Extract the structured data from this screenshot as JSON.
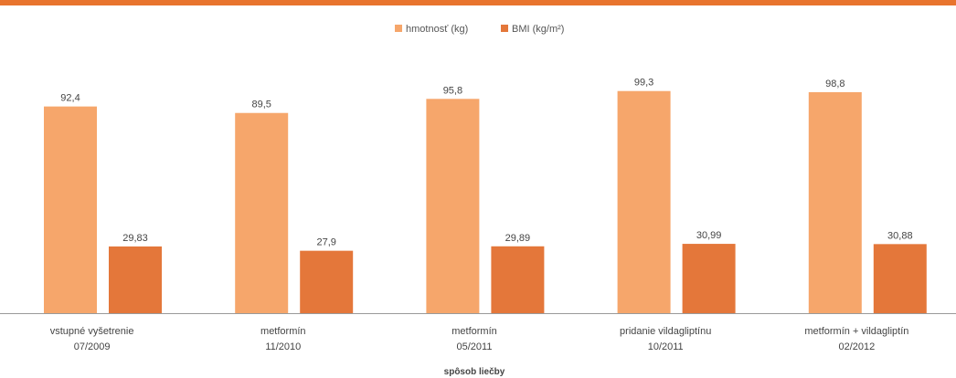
{
  "colors": {
    "accent": "#E8742E",
    "series1": "#F6A66B",
    "series2": "#E4773A",
    "axis": "#9a9a9a",
    "text": "#444444"
  },
  "chart_data": {
    "type": "bar",
    "categories": [
      [
        "vstupné vyšetrenie",
        "07/2009"
      ],
      [
        "metformín",
        "11/2010"
      ],
      [
        "metformín",
        "05/2011"
      ],
      [
        "pridanie vildagliptínu",
        "10/2011"
      ],
      [
        "metformín + vildagliptín",
        "02/2012"
      ]
    ],
    "series": [
      {
        "name": "hmotnosť (kg)",
        "values": [
          92.4,
          89.5,
          95.8,
          99.3,
          98.8
        ],
        "labels": [
          "92,4",
          "89,5",
          "95,8",
          "99,3",
          "98,8"
        ]
      },
      {
        "name": "BMI (kg/m²)",
        "values": [
          29.83,
          27.9,
          29.89,
          30.99,
          30.88
        ],
        "labels": [
          "29,83",
          "27,9",
          "29,89",
          "30,99",
          "30,88"
        ]
      }
    ],
    "title": "",
    "xlabel": "spôsob liečby",
    "ylabel": "",
    "ylim": [
      0,
      110
    ],
    "legend": "top-center",
    "grid": false
  }
}
